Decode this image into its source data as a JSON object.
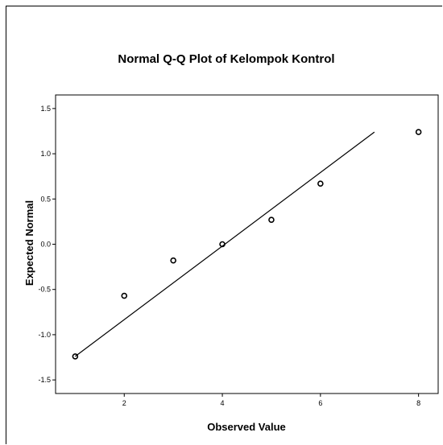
{
  "chart_data": {
    "type": "scatter",
    "title": "Normal Q-Q Plot of Kelompok Kontrol",
    "xlabel": "Observed Value",
    "ylabel": "Expected Normal",
    "xlim": [
      0.6,
      8.4
    ],
    "ylim": [
      -1.65,
      1.65
    ],
    "xticks": [
      2,
      4,
      6,
      8
    ],
    "xtick_labels": [
      "2",
      "4",
      "6",
      "8"
    ],
    "yticks": [
      -1.5,
      -1.0,
      -0.5,
      0.0,
      0.5,
      1.0,
      1.5
    ],
    "ytick_labels": [
      "-1.5",
      "-1.0",
      "-0.5",
      "0.0",
      "0.5",
      "1.0",
      "1.5"
    ],
    "grid": false,
    "series": [
      {
        "kind": "points",
        "marker": "open-circle",
        "x": [
          1,
          2,
          3,
          4,
          5,
          6,
          8
        ],
        "y": [
          -1.24,
          -0.57,
          -0.18,
          0.0,
          0.27,
          0.67,
          1.24
        ]
      },
      {
        "kind": "line",
        "x": [
          1.0,
          7.1
        ],
        "y": [
          -1.24,
          1.24
        ]
      }
    ],
    "colors": {
      "plot_background": "#ffffff",
      "marker": "#000000",
      "line": "#000000",
      "axis": "#000000"
    }
  }
}
